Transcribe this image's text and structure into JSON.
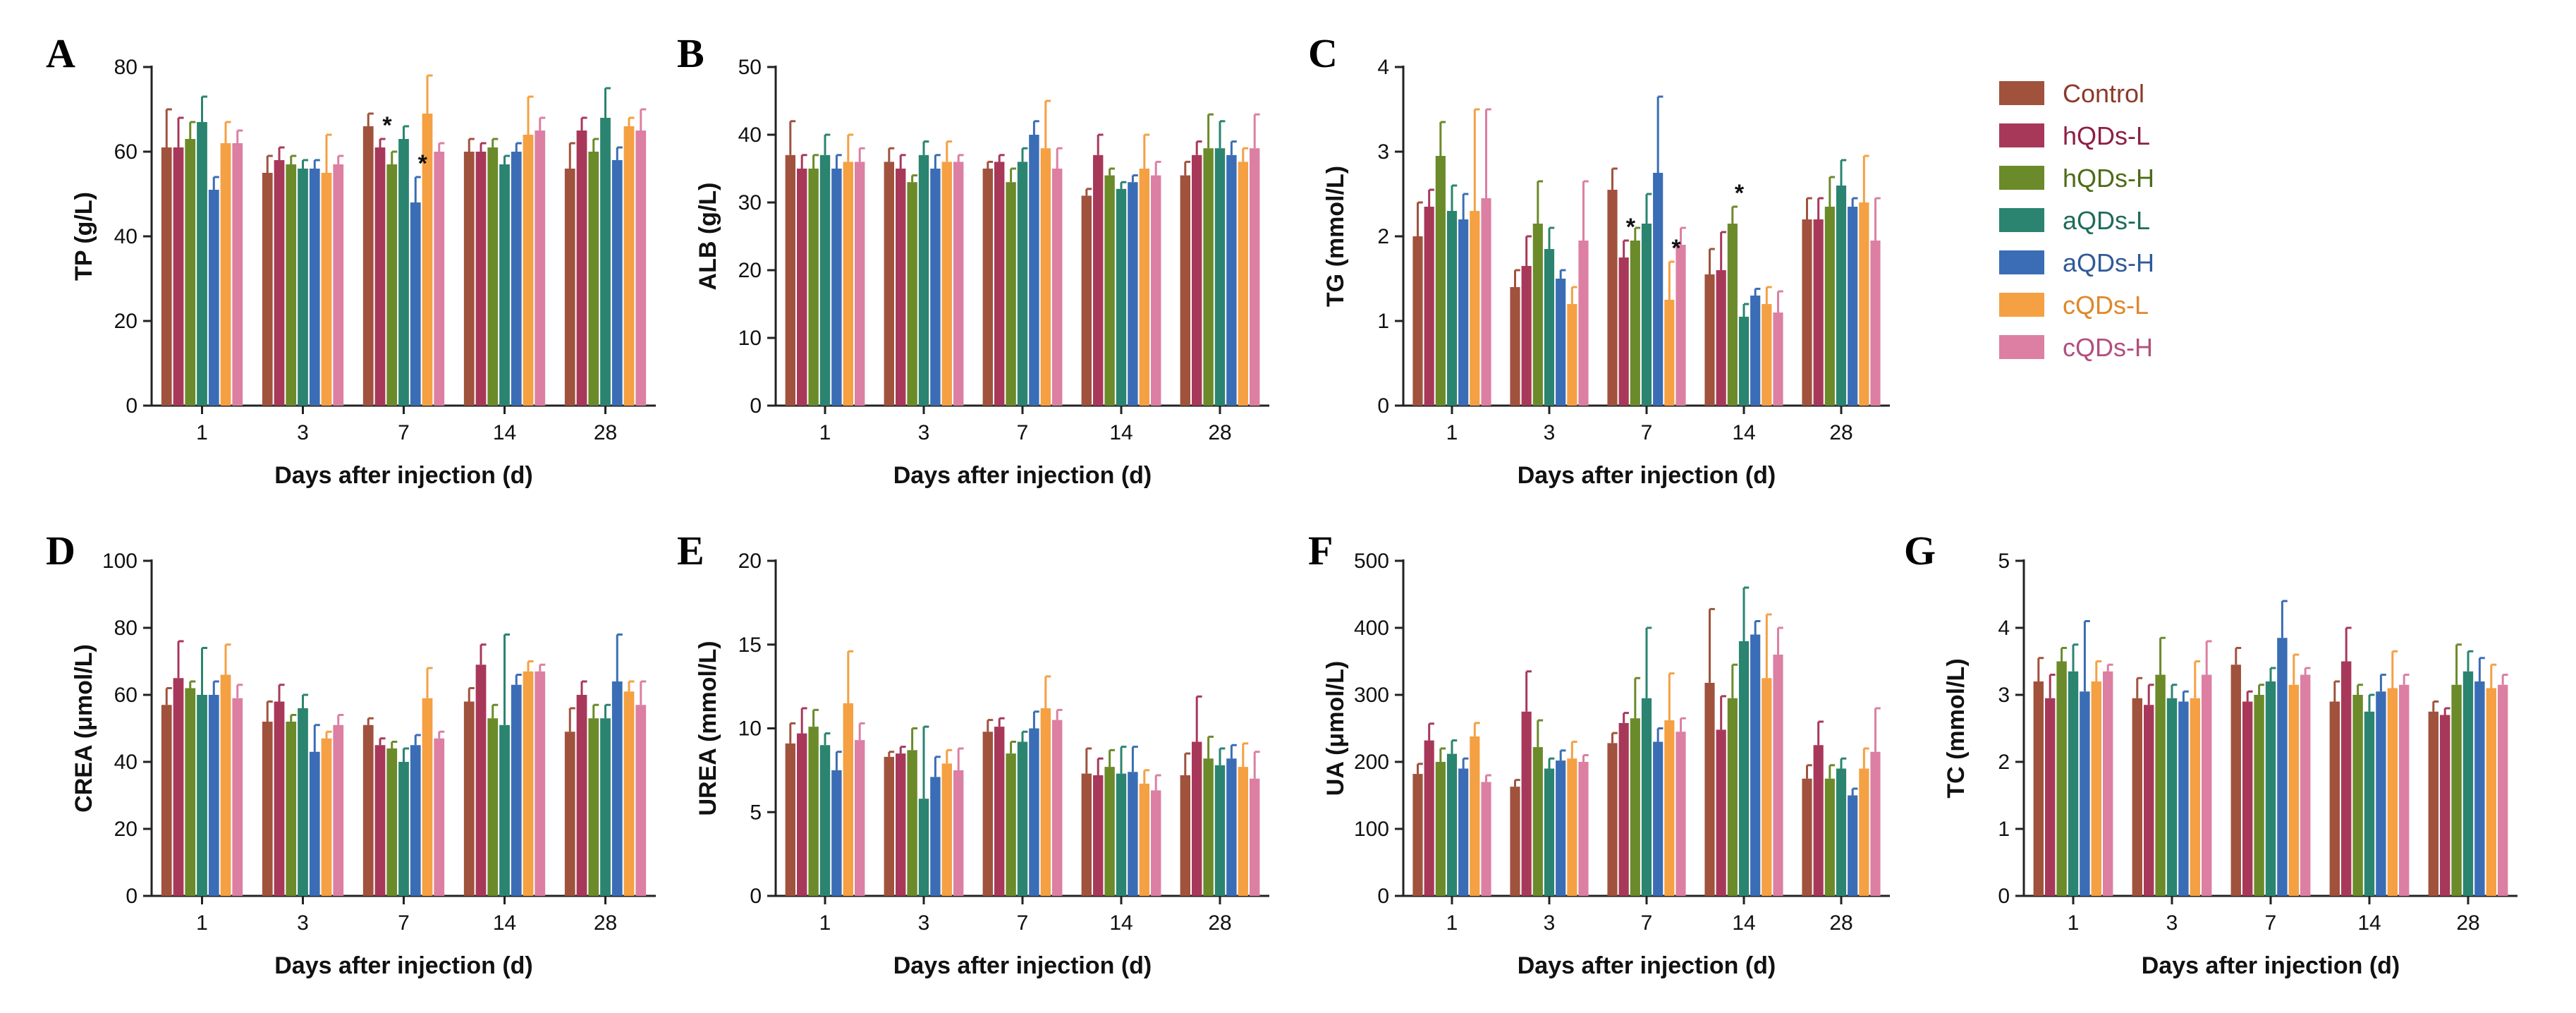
{
  "figure": {
    "categories": [
      "1",
      "3",
      "7",
      "14",
      "28"
    ],
    "xlabel": "Days after injection (d)",
    "groups": [
      "Control",
      "hQDs-L",
      "hQDs-H",
      "aQDs-L",
      "aQDs-H",
      "cQDs-L",
      "cQDs-H"
    ],
    "colors": {
      "Control": "#A0523D",
      "hQDs-L": "#A8385A",
      "hQDs-H": "#6B8A2A",
      "aQDs-L": "#2A8470",
      "aQDs-H": "#3A6DB5",
      "cQDs-L": "#F4A043",
      "cQDs-H": "#DC7FA3"
    },
    "label_colors": {
      "Control": "#8B3A2A",
      "hQDs-L": "#8E1E44",
      "hQDs-H": "#4E6B17",
      "aQDs-L": "#1F6B5A",
      "aQDs-H": "#2F5A99",
      "cQDs-L": "#E0872A",
      "cQDs-H": "#B24F7D"
    },
    "significance_marker": "*"
  },
  "chart_data": [
    {
      "id": "A",
      "letter": "A",
      "type": "bar",
      "ylabel": "TP (g/L)",
      "ylim": [
        0,
        80
      ],
      "yticks": [
        "0",
        "20",
        "40",
        "60",
        "80"
      ],
      "series": [
        {
          "name": "Control",
          "values": [
            61,
            55,
            66,
            60,
            56
          ],
          "errors": [
            9,
            4,
            3,
            3,
            6
          ]
        },
        {
          "name": "hQDs-L",
          "values": [
            61,
            58,
            61,
            60,
            65
          ],
          "errors": [
            7,
            3,
            2,
            2,
            3
          ]
        },
        {
          "name": "hQDs-H",
          "values": [
            63,
            57,
            57,
            61,
            60
          ],
          "errors": [
            4,
            2,
            3,
            2,
            3
          ]
        },
        {
          "name": "aQDs-L",
          "values": [
            67,
            56,
            63,
            57,
            68
          ],
          "errors": [
            6,
            2,
            3,
            2,
            7
          ]
        },
        {
          "name": "aQDs-H",
          "values": [
            51,
            56,
            48,
            60,
            58
          ],
          "errors": [
            3,
            2,
            6,
            2,
            3
          ]
        },
        {
          "name": "cQDs-L",
          "values": [
            62,
            55,
            69,
            64,
            66
          ],
          "errors": [
            5,
            9,
            9,
            9,
            2
          ]
        },
        {
          "name": "cQDs-H",
          "values": [
            62,
            57,
            60,
            65,
            65
          ],
          "errors": [
            3,
            2,
            2,
            3,
            5
          ]
        }
      ],
      "significance": [
        {
          "group": "hQDs-L",
          "category": "7"
        },
        {
          "group": "aQDs-H",
          "category": "7"
        }
      ]
    },
    {
      "id": "B",
      "letter": "B",
      "type": "bar",
      "ylabel": "ALB (g/L)",
      "ylim": [
        0,
        50
      ],
      "yticks": [
        "0",
        "10",
        "20",
        "30",
        "40",
        "50"
      ],
      "series": [
        {
          "name": "Control",
          "values": [
            37,
            36,
            35,
            31,
            34
          ],
          "errors": [
            5,
            2,
            1,
            1,
            2
          ]
        },
        {
          "name": "hQDs-L",
          "values": [
            35,
            35,
            36,
            37,
            37
          ],
          "errors": [
            2,
            2,
            1,
            3,
            2
          ]
        },
        {
          "name": "hQDs-H",
          "values": [
            35,
            33,
            33,
            34,
            38
          ],
          "errors": [
            2,
            1,
            2,
            1,
            5
          ]
        },
        {
          "name": "aQDs-L",
          "values": [
            37,
            37,
            36,
            32,
            38
          ],
          "errors": [
            3,
            2,
            2,
            1,
            4
          ]
        },
        {
          "name": "aQDs-H",
          "values": [
            35,
            35,
            40,
            33,
            37
          ],
          "errors": [
            2,
            2,
            2,
            1,
            2
          ]
        },
        {
          "name": "cQDs-L",
          "values": [
            36,
            36,
            38,
            35,
            36
          ],
          "errors": [
            4,
            3,
            7,
            5,
            2
          ]
        },
        {
          "name": "cQDs-H",
          "values": [
            36,
            36,
            35,
            34,
            38
          ],
          "errors": [
            2,
            1,
            3,
            2,
            5
          ]
        }
      ],
      "significance": []
    },
    {
      "id": "C",
      "letter": "C",
      "type": "bar",
      "ylabel": "TG (mmol/L)",
      "ylim": [
        0,
        4
      ],
      "yticks": [
        "0",
        "1",
        "2",
        "3",
        "4"
      ],
      "series": [
        {
          "name": "Control",
          "values": [
            2.0,
            1.4,
            2.55,
            1.55,
            2.2
          ],
          "errors": [
            0.4,
            0.2,
            0.25,
            0.3,
            0.25
          ]
        },
        {
          "name": "hQDs-L",
          "values": [
            2.35,
            1.65,
            1.75,
            1.6,
            2.2
          ],
          "errors": [
            0.2,
            0.35,
            0.2,
            0.45,
            0.25
          ]
        },
        {
          "name": "hQDs-H",
          "values": [
            2.95,
            2.15,
            1.95,
            2.15,
            2.35
          ],
          "errors": [
            0.4,
            0.5,
            0.15,
            0.2,
            0.35
          ]
        },
        {
          "name": "aQDs-L",
          "values": [
            2.3,
            1.85,
            2.15,
            1.05,
            2.6
          ],
          "errors": [
            0.3,
            0.25,
            0.35,
            0.15,
            0.3
          ]
        },
        {
          "name": "aQDs-H",
          "values": [
            2.2,
            1.5,
            2.75,
            1.3,
            2.35
          ],
          "errors": [
            0.3,
            0.1,
            0.9,
            0.08,
            0.1
          ]
        },
        {
          "name": "cQDs-L",
          "values": [
            2.3,
            1.2,
            1.25,
            1.2,
            2.4
          ],
          "errors": [
            1.2,
            0.2,
            0.45,
            0.2,
            0.55
          ]
        },
        {
          "name": "cQDs-H",
          "values": [
            2.45,
            1.95,
            1.9,
            1.1,
            1.95
          ],
          "errors": [
            1.05,
            0.7,
            0.2,
            0.25,
            0.5
          ]
        }
      ],
      "significance": [
        {
          "group": "hQDs-L",
          "category": "7"
        },
        {
          "group": "cQDs-L",
          "category": "7"
        },
        {
          "group": "hQDs-H",
          "category": "14"
        }
      ]
    },
    {
      "id": "D",
      "letter": "D",
      "type": "bar",
      "ylabel": "CREA (μmol/L)",
      "ylim": [
        0,
        100
      ],
      "yticks": [
        "0",
        "20",
        "40",
        "60",
        "80",
        "100"
      ],
      "series": [
        {
          "name": "Control",
          "values": [
            57,
            52,
            51,
            58,
            49
          ],
          "errors": [
            5,
            6,
            2,
            4,
            7
          ]
        },
        {
          "name": "hQDs-L",
          "values": [
            65,
            58,
            45,
            69,
            60
          ],
          "errors": [
            11,
            5,
            2,
            6,
            4
          ]
        },
        {
          "name": "hQDs-H",
          "values": [
            62,
            52,
            44,
            53,
            53
          ],
          "errors": [
            2,
            2,
            2,
            4,
            4
          ]
        },
        {
          "name": "aQDs-L",
          "values": [
            60,
            56,
            40,
            51,
            53
          ],
          "errors": [
            14,
            4,
            4,
            27,
            4
          ]
        },
        {
          "name": "aQDs-H",
          "values": [
            60,
            43,
            45,
            63,
            64
          ],
          "errors": [
            4,
            8,
            3,
            3,
            14
          ]
        },
        {
          "name": "cQDs-L",
          "values": [
            66,
            47,
            59,
            67,
            61
          ],
          "errors": [
            9,
            2,
            9,
            3,
            3
          ]
        },
        {
          "name": "cQDs-H",
          "values": [
            59,
            51,
            47,
            67,
            57
          ],
          "errors": [
            4,
            3,
            2,
            2,
            7
          ]
        }
      ],
      "significance": []
    },
    {
      "id": "E",
      "letter": "E",
      "type": "bar",
      "ylabel": "UREA (mmol/L)",
      "ylim": [
        0,
        20
      ],
      "yticks": [
        "0",
        "5",
        "10",
        "15",
        "20"
      ],
      "series": [
        {
          "name": "Control",
          "values": [
            9.1,
            8.3,
            9.8,
            7.3,
            7.2
          ],
          "errors": [
            1.2,
            0.3,
            0.7,
            1.5,
            1.3
          ]
        },
        {
          "name": "hQDs-L",
          "values": [
            9.7,
            8.5,
            10.1,
            7.2,
            9.2
          ],
          "errors": [
            1.5,
            0.4,
            0.5,
            1.0,
            2.7
          ]
        },
        {
          "name": "hQDs-H",
          "values": [
            10.1,
            8.7,
            8.5,
            7.7,
            8.2
          ],
          "errors": [
            1.0,
            1.3,
            0.7,
            1.0,
            1.3
          ]
        },
        {
          "name": "aQDs-L",
          "values": [
            9.0,
            5.8,
            9.2,
            7.3,
            7.8
          ],
          "errors": [
            0.7,
            4.3,
            0.6,
            1.6,
            1.0
          ]
        },
        {
          "name": "aQDs-H",
          "values": [
            7.5,
            7.1,
            10.0,
            7.4,
            8.2
          ],
          "errors": [
            1.1,
            1.2,
            1.0,
            1.5,
            0.8
          ]
        },
        {
          "name": "cQDs-L",
          "values": [
            11.5,
            7.9,
            11.2,
            6.7,
            7.7
          ],
          "errors": [
            3.1,
            0.8,
            1.9,
            0.8,
            1.4
          ]
        },
        {
          "name": "cQDs-H",
          "values": [
            9.3,
            7.5,
            10.5,
            6.3,
            7.0
          ],
          "errors": [
            1.0,
            1.3,
            0.6,
            0.9,
            1.6
          ]
        }
      ],
      "significance": []
    },
    {
      "id": "F",
      "letter": "F",
      "type": "bar",
      "ylabel": "UA (μmol/L)",
      "ylim": [
        0,
        500
      ],
      "yticks": [
        "0",
        "100",
        "200",
        "300",
        "400",
        "500"
      ],
      "series": [
        {
          "name": "Control",
          "values": [
            182,
            163,
            228,
            318,
            175
          ],
          "errors": [
            15,
            10,
            15,
            110,
            20
          ]
        },
        {
          "name": "hQDs-L",
          "values": [
            232,
            275,
            258,
            248,
            225
          ],
          "errors": [
            25,
            60,
            15,
            50,
            35
          ]
        },
        {
          "name": "hQDs-H",
          "values": [
            200,
            222,
            265,
            295,
            175
          ],
          "errors": [
            20,
            40,
            60,
            50,
            20
          ]
        },
        {
          "name": "aQDs-L",
          "values": [
            212,
            190,
            295,
            380,
            190
          ],
          "errors": [
            20,
            15,
            105,
            80,
            15
          ]
        },
        {
          "name": "aQDs-H",
          "values": [
            190,
            202,
            230,
            390,
            150
          ],
          "errors": [
            15,
            15,
            20,
            20,
            10
          ]
        },
        {
          "name": "cQDs-L",
          "values": [
            238,
            205,
            262,
            325,
            190
          ],
          "errors": [
            20,
            25,
            70,
            95,
            30
          ]
        },
        {
          "name": "cQDs-H",
          "values": [
            170,
            200,
            245,
            360,
            215
          ],
          "errors": [
            10,
            10,
            20,
            40,
            65
          ]
        }
      ],
      "significance": []
    },
    {
      "id": "G",
      "letter": "G",
      "type": "bar",
      "ylabel": "TC (mmol/L)",
      "ylim": [
        0,
        5
      ],
      "yticks": [
        "0",
        "1",
        "2",
        "3",
        "4",
        "5"
      ],
      "series": [
        {
          "name": "Control",
          "values": [
            3.2,
            2.95,
            3.45,
            2.9,
            2.75
          ],
          "errors": [
            0.35,
            0.3,
            0.25,
            0.3,
            0.15
          ]
        },
        {
          "name": "hQDs-L",
          "values": [
            2.95,
            2.85,
            2.9,
            3.5,
            2.7
          ],
          "errors": [
            0.35,
            0.3,
            0.15,
            0.5,
            0.1
          ]
        },
        {
          "name": "hQDs-H",
          "values": [
            3.5,
            3.3,
            3.0,
            3.0,
            3.15
          ],
          "errors": [
            0.2,
            0.55,
            0.15,
            0.15,
            0.6
          ]
        },
        {
          "name": "aQDs-L",
          "values": [
            3.35,
            2.95,
            3.2,
            2.75,
            3.35
          ],
          "errors": [
            0.4,
            0.2,
            0.2,
            0.25,
            0.3
          ]
        },
        {
          "name": "aQDs-H",
          "values": [
            3.05,
            2.9,
            3.85,
            3.05,
            3.2
          ],
          "errors": [
            1.05,
            0.15,
            0.55,
            0.25,
            0.35
          ]
        },
        {
          "name": "cQDs-L",
          "values": [
            3.2,
            2.95,
            3.15,
            3.1,
            3.1
          ],
          "errors": [
            0.3,
            0.55,
            0.45,
            0.55,
            0.35
          ]
        },
        {
          "name": "cQDs-H",
          "values": [
            3.35,
            3.3,
            3.3,
            3.15,
            3.15
          ],
          "errors": [
            0.1,
            0.5,
            0.1,
            0.15,
            0.15
          ]
        }
      ],
      "significance": []
    }
  ]
}
